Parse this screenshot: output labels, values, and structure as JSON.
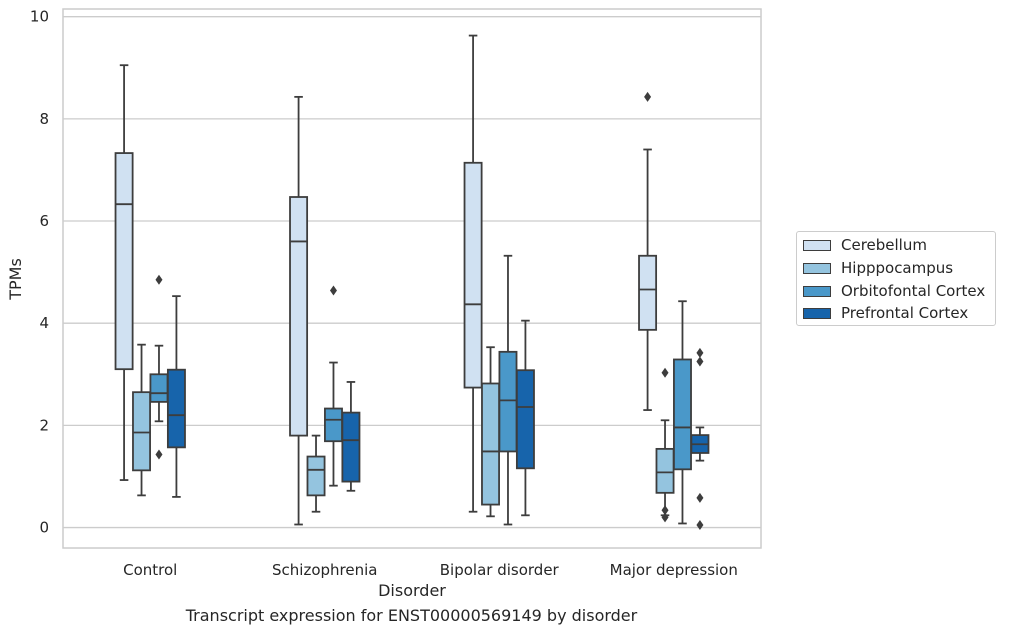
{
  "caption": "Transcript expression for ENST00000569149 by disorder",
  "chart_data": {
    "type": "box",
    "xlabel": "Disorder",
    "ylabel": "TPMs",
    "ylim": [
      -0.4,
      10.15
    ],
    "yticks": [
      0,
      2,
      4,
      6,
      8,
      10
    ],
    "grid": true,
    "legend_position": "right",
    "categories": [
      "Control",
      "Schizophrenia",
      "Bipolar disorder",
      "Major depression"
    ],
    "series": [
      {
        "name": "Cerebellum",
        "color": "#d0e1f2",
        "boxes": [
          {
            "whislo": 0.93,
            "q1": 3.1,
            "med": 6.33,
            "q3": 7.33,
            "whishi": 9.05,
            "fliers": []
          },
          {
            "whislo": 0.06,
            "q1": 1.8,
            "med": 5.6,
            "q3": 6.47,
            "whishi": 8.43,
            "fliers": []
          },
          {
            "whislo": 0.31,
            "q1": 2.74,
            "med": 4.37,
            "q3": 7.14,
            "whishi": 9.63,
            "fliers": []
          },
          {
            "whislo": 2.3,
            "q1": 3.87,
            "med": 4.66,
            "q3": 5.32,
            "whishi": 7.4,
            "fliers": [
              8.43
            ]
          }
        ]
      },
      {
        "name": "Hipppocampus",
        "color": "#94c4df",
        "boxes": [
          {
            "whislo": 0.63,
            "q1": 1.12,
            "med": 1.86,
            "q3": 2.65,
            "whishi": 3.58,
            "fliers": []
          },
          {
            "whislo": 0.31,
            "q1": 0.63,
            "med": 1.13,
            "q3": 1.39,
            "whishi": 1.8,
            "fliers": []
          },
          {
            "whislo": 0.22,
            "q1": 0.45,
            "med": 1.49,
            "q3": 2.82,
            "whishi": 3.53,
            "fliers": []
          },
          {
            "whislo": 0.24,
            "q1": 0.68,
            "med": 1.08,
            "q3": 1.54,
            "whishi": 2.1,
            "fliers": [
              3.03,
              0.34,
              0.2
            ]
          }
        ]
      },
      {
        "name": "Orbitofontal Cortex",
        "color": "#4a98c9",
        "boxes": [
          {
            "whislo": 2.08,
            "q1": 2.46,
            "med": 2.63,
            "q3": 3.0,
            "whishi": 3.56,
            "fliers": [
              4.85,
              1.43
            ]
          },
          {
            "whislo": 0.82,
            "q1": 1.69,
            "med": 2.11,
            "q3": 2.33,
            "whishi": 3.23,
            "fliers": [
              4.64
            ]
          },
          {
            "whislo": 0.06,
            "q1": 1.49,
            "med": 2.49,
            "q3": 3.44,
            "whishi": 5.32,
            "fliers": []
          },
          {
            "whislo": 0.08,
            "q1": 1.14,
            "med": 1.96,
            "q3": 3.29,
            "whishi": 4.43,
            "fliers": []
          }
        ]
      },
      {
        "name": "Prefrontal Cortex",
        "color": "#1764ab",
        "boxes": [
          {
            "whislo": 0.6,
            "q1": 1.57,
            "med": 2.2,
            "q3": 3.09,
            "whishi": 4.53,
            "fliers": []
          },
          {
            "whislo": 0.72,
            "q1": 0.9,
            "med": 1.71,
            "q3": 2.25,
            "whishi": 2.85,
            "fliers": []
          },
          {
            "whislo": 0.24,
            "q1": 1.16,
            "med": 2.36,
            "q3": 3.08,
            "whishi": 4.05,
            "fliers": []
          },
          {
            "whislo": 1.31,
            "q1": 1.46,
            "med": 1.63,
            "q3": 1.81,
            "whishi": 1.96,
            "fliers": [
              3.42,
              3.25,
              0.58,
              0.05
            ]
          }
        ]
      }
    ]
  }
}
